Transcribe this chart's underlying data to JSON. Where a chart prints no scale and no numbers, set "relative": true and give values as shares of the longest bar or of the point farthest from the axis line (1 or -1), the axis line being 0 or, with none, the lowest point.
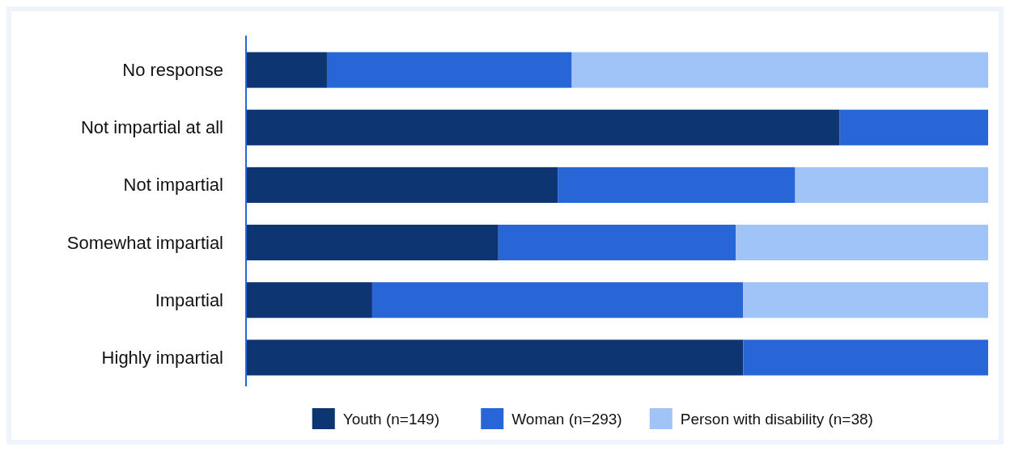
{
  "chart_data": {
    "type": "bar",
    "orientation": "horizontal",
    "stacked": true,
    "relative": true,
    "legend": "bottom",
    "categories": [
      "No response",
      "Not impartial at all",
      "Not impartial",
      "Somewhat impartial",
      "Impartial",
      "Highly impartial"
    ],
    "series": [
      {
        "name": "Youth (n=149)",
        "color": "#0d3572",
        "values": [
          0.109,
          0.8,
          0.42,
          0.34,
          0.17,
          0.67
        ]
      },
      {
        "name": "Woman (n=293)",
        "color": "#2866d8",
        "values": [
          0.33,
          0.2,
          0.32,
          0.32,
          0.5,
          0.33
        ]
      },
      {
        "name": "Person with disability (n=38)",
        "color": "#a1c4f8",
        "values": [
          0.561,
          0,
          0.26,
          0.34,
          0.33,
          0
        ]
      }
    ]
  }
}
